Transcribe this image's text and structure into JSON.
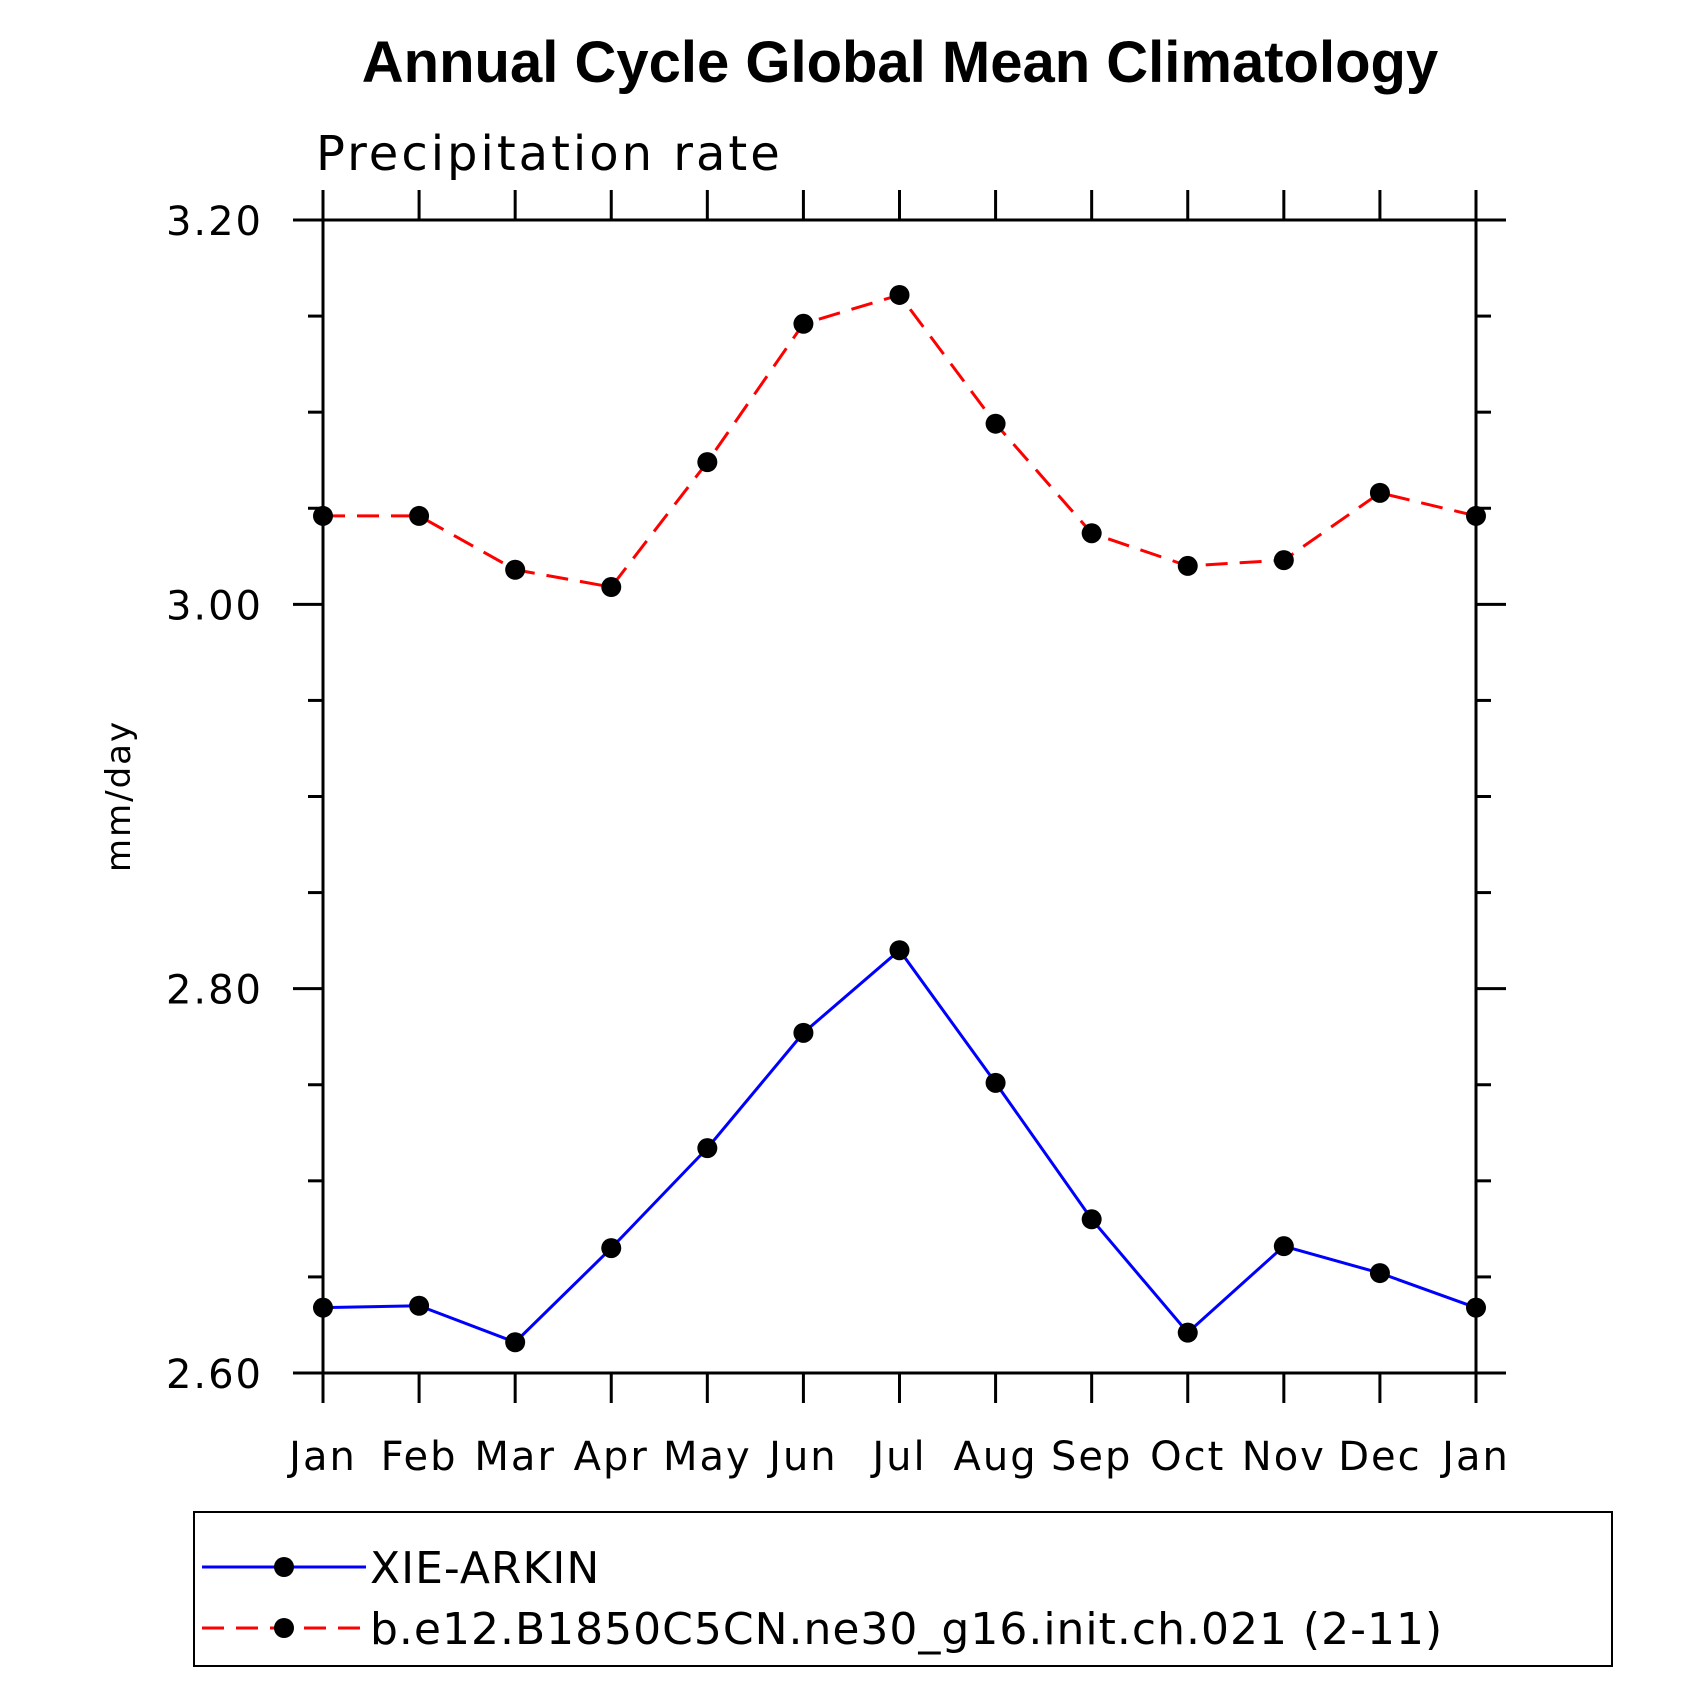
{
  "chart_data": {
    "type": "line",
    "title": "Annual Cycle Global Mean Climatology",
    "subtitle": "Precipitation rate",
    "xlabel": "",
    "ylabel": "mm/day",
    "categories": [
      "Jan",
      "Feb",
      "Mar",
      "Apr",
      "May",
      "Jun",
      "Jul",
      "Aug",
      "Sep",
      "Oct",
      "Nov",
      "Dec",
      "Jan"
    ],
    "ylim": [
      2.6,
      3.2
    ],
    "yticks_major": [
      "2.60",
      "2.80",
      "3.00",
      "3.20"
    ],
    "yticks_minor_step": 0.05,
    "grid": false,
    "legend_position": "bottom",
    "series": [
      {
        "name": "XIE-ARKIN",
        "color": "#0000ff",
        "style": "solid",
        "marker": "filled-circle",
        "values": [
          2.634,
          2.635,
          2.616,
          2.665,
          2.717,
          2.777,
          2.82,
          2.751,
          2.68,
          2.621,
          2.666,
          2.652,
          2.634
        ]
      },
      {
        "name": "b.e12.B1850C5CN.ne30_g16.init.ch.021 (2-11)",
        "color": "#ff0000",
        "style": "dashed",
        "marker": "filled-circle",
        "values": [
          3.046,
          3.046,
          3.018,
          3.009,
          3.074,
          3.146,
          3.161,
          3.094,
          3.037,
          3.02,
          3.023,
          3.058,
          3.046
        ]
      }
    ]
  }
}
